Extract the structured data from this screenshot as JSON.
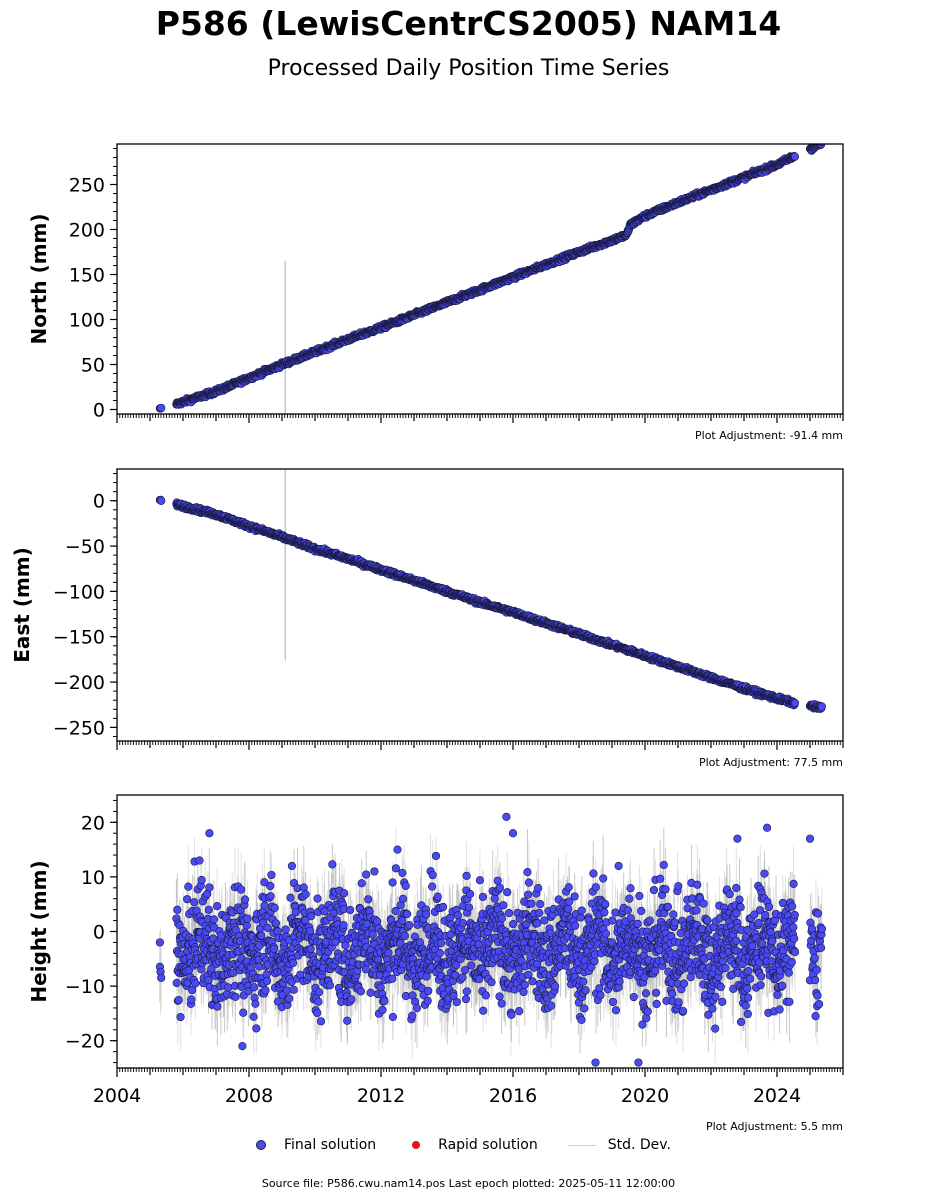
{
  "title": "P586 (LewisCentrCS2005) NAM14",
  "subtitle": "Processed Daily Position Time Series",
  "legend": {
    "final": "Final solution",
    "rapid": "Rapid solution",
    "std": "Std. Dev."
  },
  "source_text": "Source file: P586.cwu.nam14.pos  Last epoch plotted: 2025-05-11 12:00:00",
  "colors": {
    "final": "#4a4af4",
    "rapid": "#e8141a",
    "std": "#c8c8c8"
  },
  "chart_data": [
    {
      "type": "scatter",
      "ylabel": "North (mm)",
      "adjustment": "Plot Adjustment: -91.4 mm",
      "xlim": [
        2004,
        2026
      ],
      "ylim": [
        -5,
        295
      ],
      "yticks": [
        0,
        50,
        100,
        150,
        200,
        250
      ],
      "ytick_labels": [
        "0",
        "50",
        "100",
        "150",
        "200",
        "250"
      ],
      "trend": "linear increase ~14 mm/yr with ~+8 mm offset near 2019.5",
      "series": [
        {
          "x": [
            2005.3,
            2005.8,
            2007,
            2008,
            2009,
            2010,
            2011,
            2012,
            2013,
            2014,
            2015,
            2016,
            2017,
            2018,
            2019,
            2019.45,
            2019.55,
            2020,
            2021,
            2022,
            2023,
            2024,
            2024.5,
            2025.1,
            2025.3
          ],
          "y": [
            0,
            6,
            20,
            35,
            50,
            64,
            78,
            91,
            105,
            119,
            133,
            147,
            161,
            175,
            188,
            194,
            205,
            215,
            230,
            244,
            258,
            272,
            281,
            291,
            295
          ]
        }
      ]
    },
    {
      "type": "scatter",
      "ylabel": "East (mm)",
      "adjustment": "Plot Adjustment: 77.5 mm",
      "xlim": [
        2004,
        2026
      ],
      "ylim": [
        -265,
        35
      ],
      "yticks": [
        0,
        -50,
        -100,
        -150,
        -200,
        -250
      ],
      "ytick_labels": [
        "0",
        "−50",
        "−100",
        "−150",
        "−200",
        "−250"
      ],
      "trend": "linear decrease ~-11.9 mm/yr",
      "series": [
        {
          "x": [
            2005.3,
            2005.8,
            2007,
            2008,
            2009,
            2010,
            2011,
            2012,
            2013,
            2014,
            2015,
            2016,
            2017,
            2018,
            2019,
            2020,
            2021,
            2022,
            2023,
            2024,
            2024.5,
            2025.1,
            2025.4
          ],
          "y": [
            1,
            -4,
            -15,
            -28,
            -40,
            -53,
            -64,
            -76,
            -88,
            -100,
            -112,
            -123,
            -135,
            -147,
            -159,
            -171,
            -183,
            -195,
            -207,
            -218,
            -223,
            -227,
            -229
          ]
        }
      ]
    },
    {
      "type": "scatter",
      "ylabel": "Height (mm)",
      "adjustment": "Plot Adjustment: 5.5 mm",
      "xlim": [
        2004,
        2026
      ],
      "ylim": [
        -25,
        25
      ],
      "yticks": [
        20,
        10,
        0,
        -10,
        -20
      ],
      "ytick_labels": [
        "20",
        "10",
        "0",
        "−10",
        "−20"
      ],
      "xticks": [
        2004,
        2008,
        2012,
        2016,
        2020,
        2024
      ],
      "xtick_labels": [
        "2004",
        "2008",
        "2012",
        "2016",
        "2020",
        "2024"
      ],
      "trend": "noisy scatter around -3 mm, spread roughly -20 to +15 mm",
      "series": [
        {
          "x": [
            2005.3,
            2006.5,
            2006.8,
            2007.8,
            2009.3,
            2011.8,
            2012.5,
            2015.8,
            2016,
            2018.5,
            2019.2,
            2019.8,
            2022.8,
            2023.7,
            2025
          ],
          "y": [
            -2,
            13,
            18,
            -21,
            12,
            11,
            15,
            21,
            18,
            -24,
            12,
            -24,
            17,
            19,
            17
          ]
        }
      ]
    }
  ]
}
